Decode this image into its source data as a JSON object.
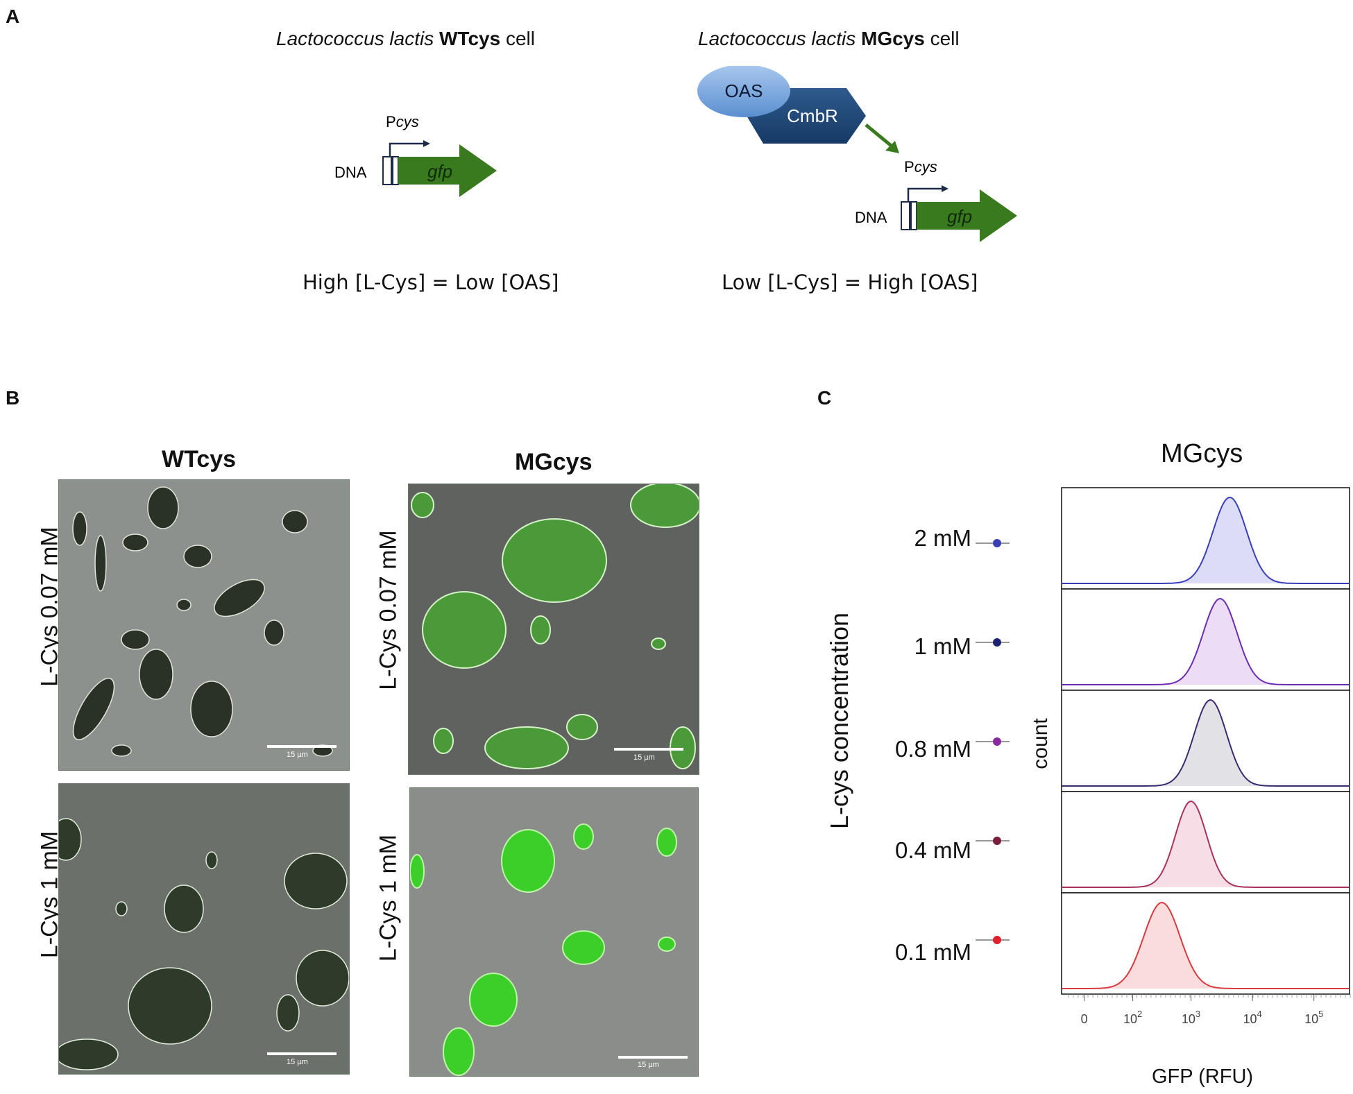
{
  "panels": {
    "a": "A",
    "b": "B",
    "c": "C"
  },
  "panel_a": {
    "wt": {
      "species": "Lactococcus lactis",
      "strain": "WTcys",
      "suffix": "cell",
      "promoter_prefix": "P",
      "promoter_italic": "cys",
      "dna": "DNA",
      "gene": "gfp",
      "equation": "High [L-Cys] = Low [OAS]"
    },
    "mg": {
      "species": "Lactococcus lactis",
      "strain": "MGcys",
      "suffix": "cell",
      "oas": "OAS",
      "regulator": "CmbR",
      "promoter_prefix": "P",
      "promoter_italic": "cys",
      "dna": "DNA",
      "gene": "gfp",
      "equation": "Low [L-Cys] = High [OAS]"
    }
  },
  "panel_b": {
    "columns": [
      "WTcys",
      "MGcys"
    ],
    "rows": [
      "L-Cys 0.07 mM",
      "L-Cys 1 mM"
    ],
    "scale_bar": "15 µm"
  },
  "panel_c": {
    "title": "MGcys",
    "ylabel": "L-cys concentration",
    "count_label": "count",
    "xlabel": "GFP (RFU)",
    "x_ticks": [
      {
        "base": "0",
        "exp": ""
      },
      {
        "base": "10",
        "exp": "2"
      },
      {
        "base": "10",
        "exp": "3"
      },
      {
        "base": "10",
        "exp": "4"
      },
      {
        "base": "10",
        "exp": "5"
      }
    ],
    "concentrations": [
      {
        "label": "2 mM",
        "color": "#3a3fb8"
      },
      {
        "label": "1 mM",
        "color": "#1e2070"
      },
      {
        "label": "0.8 mM",
        "color": "#8a2aa0"
      },
      {
        "label": "0.4 mM",
        "color": "#7a1e3c"
      },
      {
        "label": "0.1 mM",
        "color": "#e0202a"
      }
    ]
  },
  "chart_data": {
    "type": "area",
    "title": "MGcys",
    "xlabel": "GFP (RFU)",
    "ylabel": "count",
    "x_scale": "log",
    "series": [
      {
        "name": "2 mM",
        "peak_log10": 3.6,
        "sigma": 0.26,
        "line": "#3a3fb8",
        "fill": "#dcdcf7"
      },
      {
        "name": "1 mM",
        "peak_log10": 3.45,
        "sigma": 0.26,
        "line": "#6a2cb0",
        "fill": "#ecdcf6"
      },
      {
        "name": "0.8 mM",
        "peak_log10": 3.3,
        "sigma": 0.25,
        "line": "#3a2a70",
        "fill": "#e2e2e6"
      },
      {
        "name": "0.4 mM",
        "peak_log10": 3.0,
        "sigma": 0.24,
        "line": "#a8325e",
        "fill": "#f6dde6"
      },
      {
        "name": "0.1 mM",
        "peak_log10": 2.55,
        "sigma": 0.28,
        "line": "#d83a40",
        "fill": "#fadcdc"
      }
    ]
  }
}
